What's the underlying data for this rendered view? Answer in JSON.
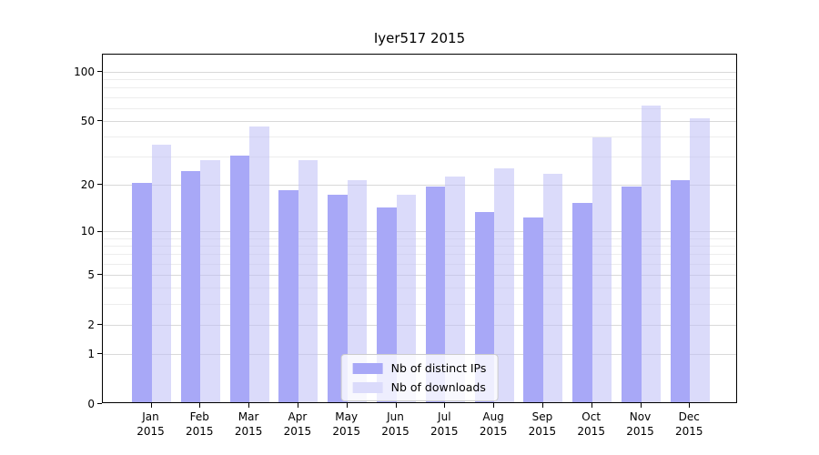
{
  "window": {
    "title": "Iyer517 2015"
  },
  "chart_data": {
    "type": "bar",
    "title": "Iyer517 2015",
    "categories": [
      "Jan",
      "Feb",
      "Mar",
      "Apr",
      "May",
      "Jun",
      "Jul",
      "Aug",
      "Sep",
      "Oct",
      "Nov",
      "Dec"
    ],
    "year": "2015",
    "series": [
      {
        "name": "Nb of distinct IPs",
        "values": [
          20,
          24,
          30,
          18,
          17,
          14,
          19,
          13,
          12,
          15,
          19,
          21
        ]
      },
      {
        "name": "Nb of downloads",
        "values": [
          35,
          28,
          45,
          28,
          21,
          17,
          22,
          25,
          23,
          39,
          61,
          51
        ]
      }
    ],
    "y_axis": {
      "scale": "log1p",
      "ticks": [
        100,
        50,
        20,
        10,
        5,
        2,
        1,
        0
      ],
      "ylim": [
        0,
        128
      ],
      "major_gridlines": [
        1,
        2,
        5,
        10,
        20,
        50,
        100
      ],
      "minor_gridlines": [
        3,
        4,
        6,
        7,
        8,
        9,
        30,
        40,
        60,
        70,
        80,
        90
      ],
      "grid": "on"
    },
    "xlabel": "",
    "ylabel": "",
    "legend": {
      "position": "bottom-center"
    }
  },
  "colors": {
    "bar_ips": "#a8a8f7",
    "bar_downloads": "#dbdbfb",
    "bar_downloads_fill": "rgba(189,189,246,0.55)",
    "grid_major": "#d9d9d9",
    "grid_minor": "#ededed",
    "axis": "#000000",
    "background": "#ffffff"
  }
}
